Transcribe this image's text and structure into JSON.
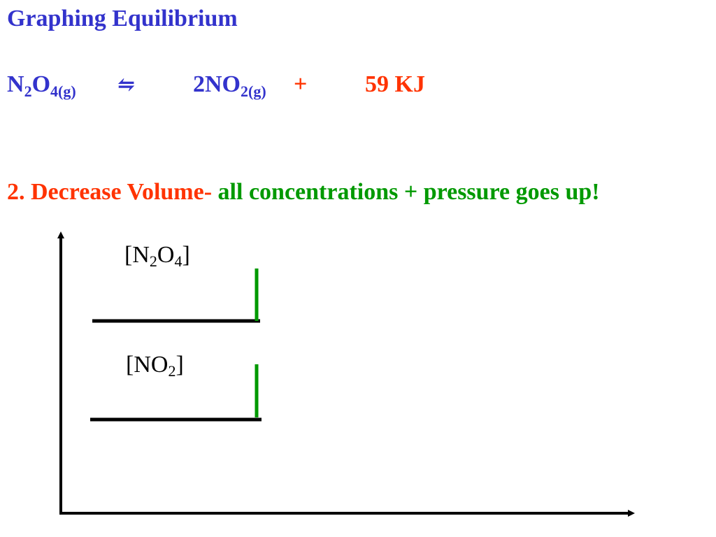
{
  "title": "Graphing Equilibrium",
  "equation": {
    "reactant": {
      "base": "N",
      "sub1": "2",
      "mid": "O",
      "sub2": "4(g)"
    },
    "arrow": "⇋",
    "product": {
      "base": "2NO",
      "sub": "2(g)"
    },
    "plus": "+",
    "energy": "59 KJ"
  },
  "statement": {
    "number_label": "2. Decrease Volume-",
    "effect": "all concentrations + pressure goes up!"
  },
  "graph": {
    "n2o4_label": {
      "open": "[N",
      "sub1": "2",
      "mid": "O",
      "sub2": "4",
      "close": "]"
    },
    "no2_label": {
      "open": "[NO",
      "sub": "2",
      "close": "]"
    }
  },
  "colors": {
    "title": "#3333cc",
    "energy": "#ff3300",
    "effect": "#009900",
    "axis": "#000000",
    "jump": "#009900"
  }
}
